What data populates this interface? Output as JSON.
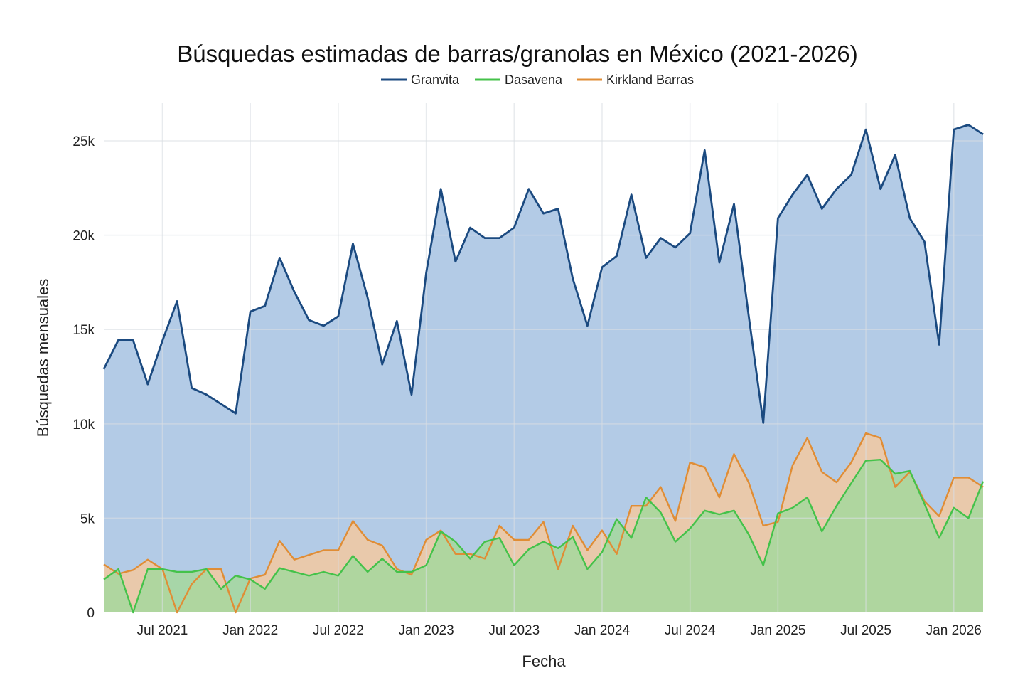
{
  "chart_data": {
    "type": "area",
    "title": "Búsquedas estimadas de barras/granolas en México (2021-2026)",
    "xlabel": "Fecha",
    "ylabel": "Búsquedas mensuales",
    "ylim": [
      0,
      27000
    ],
    "x_ticks": [
      {
        "label": "Jul 2021",
        "index": 4
      },
      {
        "label": "Jan 2022",
        "index": 10
      },
      {
        "label": "Jul 2022",
        "index": 16
      },
      {
        "label": "Jan 2023",
        "index": 22
      },
      {
        "label": "Jul 2023",
        "index": 28
      },
      {
        "label": "Jan 2024",
        "index": 34
      },
      {
        "label": "Jul 2024",
        "index": 40
      },
      {
        "label": "Jan 2025",
        "index": 46
      },
      {
        "label": "Jul 2025",
        "index": 52
      },
      {
        "label": "Jan 2026",
        "index": 58
      }
    ],
    "y_ticks": [
      {
        "label": "0",
        "value": 0
      },
      {
        "label": "5k",
        "value": 5000
      },
      {
        "label": "10k",
        "value": 10000
      },
      {
        "label": "15k",
        "value": 15000
      },
      {
        "label": "20k",
        "value": 20000
      },
      {
        "label": "25k",
        "value": 25000
      }
    ],
    "x_start": "Mar 2021",
    "x_end": "Mar 2026",
    "grid": true,
    "legend_position": "top-center",
    "series": [
      {
        "name": "Granvita",
        "color": "#1b4a80",
        "fill": "#b3cbe6",
        "values": [
          12900,
          14450,
          14430,
          12100,
          14400,
          16500,
          11900,
          11550,
          11050,
          10550,
          15950,
          16250,
          18800,
          17000,
          15500,
          15200,
          15700,
          19550,
          16700,
          13150,
          15450,
          11550,
          18000,
          22450,
          18600,
          20400,
          19850,
          19850,
          20400,
          22450,
          21150,
          21400,
          17700,
          15200,
          18300,
          18900,
          22150,
          18800,
          19850,
          19350,
          20100,
          24500,
          18550,
          21650,
          15750,
          10050,
          20900,
          22150,
          23200,
          21400,
          22450,
          23200,
          25600,
          22450,
          24250,
          20900,
          19650,
          14200,
          25600,
          25850,
          25350
        ]
      },
      {
        "name": "Dasavena",
        "color": "#44c24a",
        "fill": "#a5d89c",
        "values": [
          1750,
          2300,
          0,
          2300,
          2300,
          2150,
          2150,
          2300,
          1250,
          1950,
          1750,
          1250,
          2350,
          2150,
          1950,
          2150,
          1950,
          3000,
          2150,
          2850,
          2150,
          2150,
          2500,
          4300,
          3750,
          2850,
          3750,
          3950,
          2500,
          3350,
          3750,
          3400,
          4000,
          2300,
          3200,
          4950,
          3950,
          6100,
          5300,
          3750,
          4450,
          5400,
          5200,
          5400,
          4150,
          2500,
          5250,
          5550,
          6100,
          4300,
          5650,
          6850,
          8050,
          8100,
          7350,
          7500,
          5750,
          3950,
          5550,
          5000,
          6950
        ]
      },
      {
        "name": "Kirkland Barras",
        "color": "#e08d35",
        "fill": "#f2c9a0",
        "values": [
          2550,
          2050,
          2250,
          2800,
          2300,
          0,
          1500,
          2300,
          2300,
          0,
          1800,
          2000,
          3800,
          2800,
          3050,
          3300,
          3300,
          4850,
          3850,
          3550,
          2300,
          2000,
          3850,
          4350,
          3100,
          3100,
          2850,
          4600,
          3850,
          3850,
          4800,
          2300,
          4600,
          3300,
          4350,
          3100,
          5650,
          5650,
          6650,
          4850,
          7950,
          7700,
          6100,
          8400,
          6900,
          4600,
          4800,
          7800,
          9250,
          7450,
          6900,
          7950,
          9500,
          9250,
          6650,
          7450,
          5900,
          5100,
          7150,
          7150,
          6650
        ]
      }
    ]
  }
}
